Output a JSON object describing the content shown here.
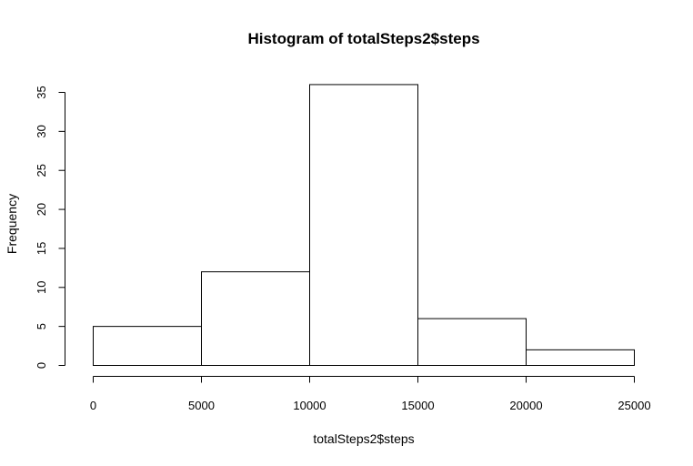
{
  "chart_data": {
    "type": "bar",
    "title": "Histogram of totalSteps2$steps",
    "xlabel": "totalSteps2$steps",
    "ylabel": "Frequency",
    "bins": [
      {
        "start": 0,
        "end": 5000,
        "count": 5
      },
      {
        "start": 5000,
        "end": 10000,
        "count": 12
      },
      {
        "start": 10000,
        "end": 15000,
        "count": 36
      },
      {
        "start": 15000,
        "end": 20000,
        "count": 6
      },
      {
        "start": 20000,
        "end": 25000,
        "count": 2
      }
    ],
    "xlim": [
      0,
      25000
    ],
    "ylim": [
      0,
      35
    ],
    "xticks": [
      "0",
      "5000",
      "10000",
      "15000",
      "20000",
      "25000"
    ],
    "yticks": [
      "0",
      "5",
      "10",
      "15",
      "20",
      "25",
      "30",
      "35"
    ],
    "grid": false,
    "colors": {
      "bar_fill": "#ffffff",
      "bar_stroke": "#000000"
    }
  }
}
